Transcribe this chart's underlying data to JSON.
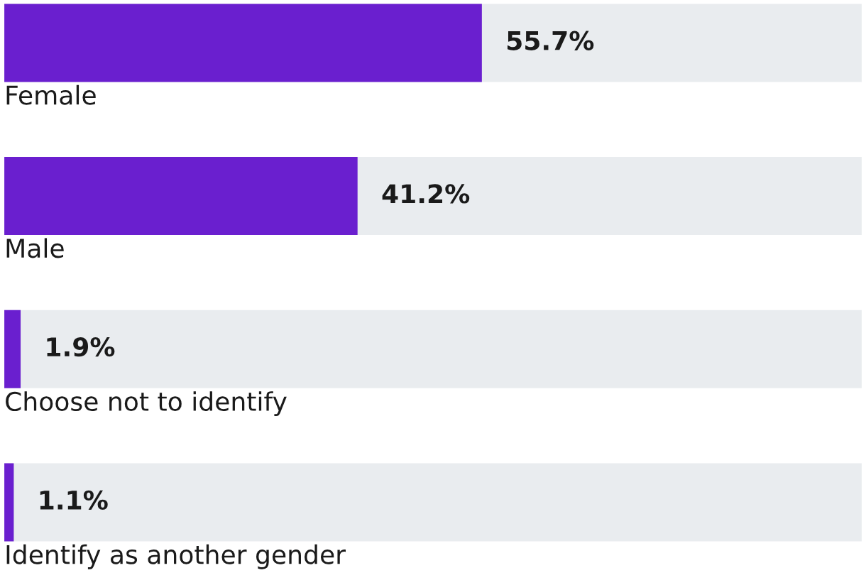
{
  "chart_data": {
    "type": "bar",
    "orientation": "horizontal",
    "categories": [
      "Female",
      "Male",
      "Choose not to identify",
      "Identify as another gender"
    ],
    "values": [
      55.7,
      41.2,
      1.9,
      1.1
    ],
    "value_labels": [
      "55.7%",
      "41.2%",
      "1.9%",
      "1.1%"
    ],
    "color": "#6a1fcf",
    "xlim": [
      0,
      100
    ],
    "tick_labels": false
  }
}
